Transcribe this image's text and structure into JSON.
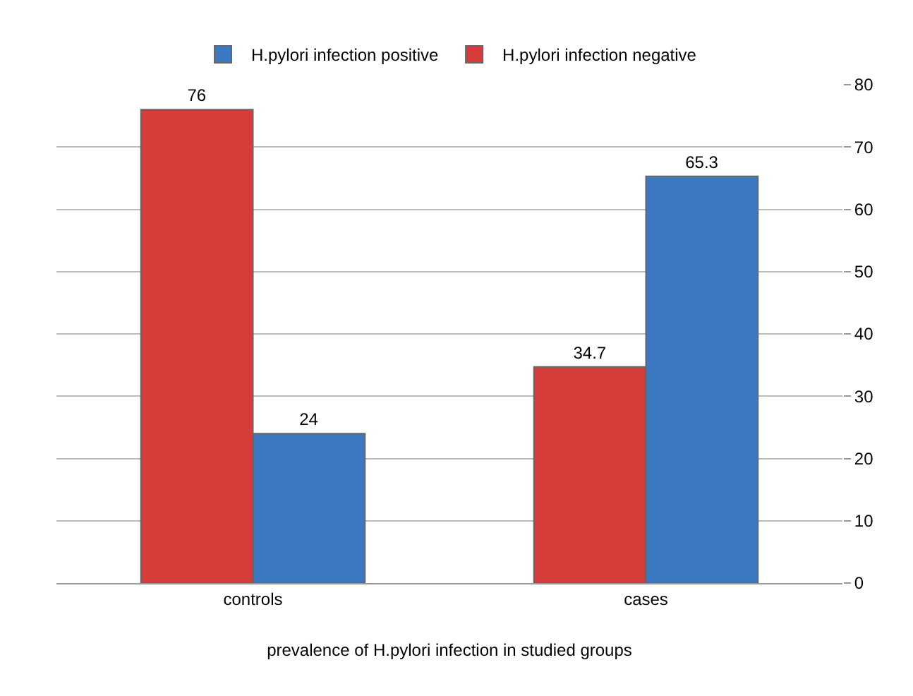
{
  "chart_data": {
    "type": "bar",
    "xlabel": "prevalence of H.pylori infection in studied groups",
    "categories": [
      "controls",
      "cases"
    ],
    "series": [
      {
        "name": "H.pylori infection negative",
        "color": "#d63c3a",
        "values": [
          76,
          34.7
        ]
      },
      {
        "name": "H.pylori infection positive",
        "color": "#3b78c2",
        "values": [
          24,
          65.3
        ]
      }
    ],
    "ylim": [
      0,
      80
    ],
    "yticks": [
      0,
      10,
      20,
      30,
      40,
      50,
      60,
      70,
      80
    ],
    "grid": "y",
    "legend": "top",
    "data_labels": true
  }
}
